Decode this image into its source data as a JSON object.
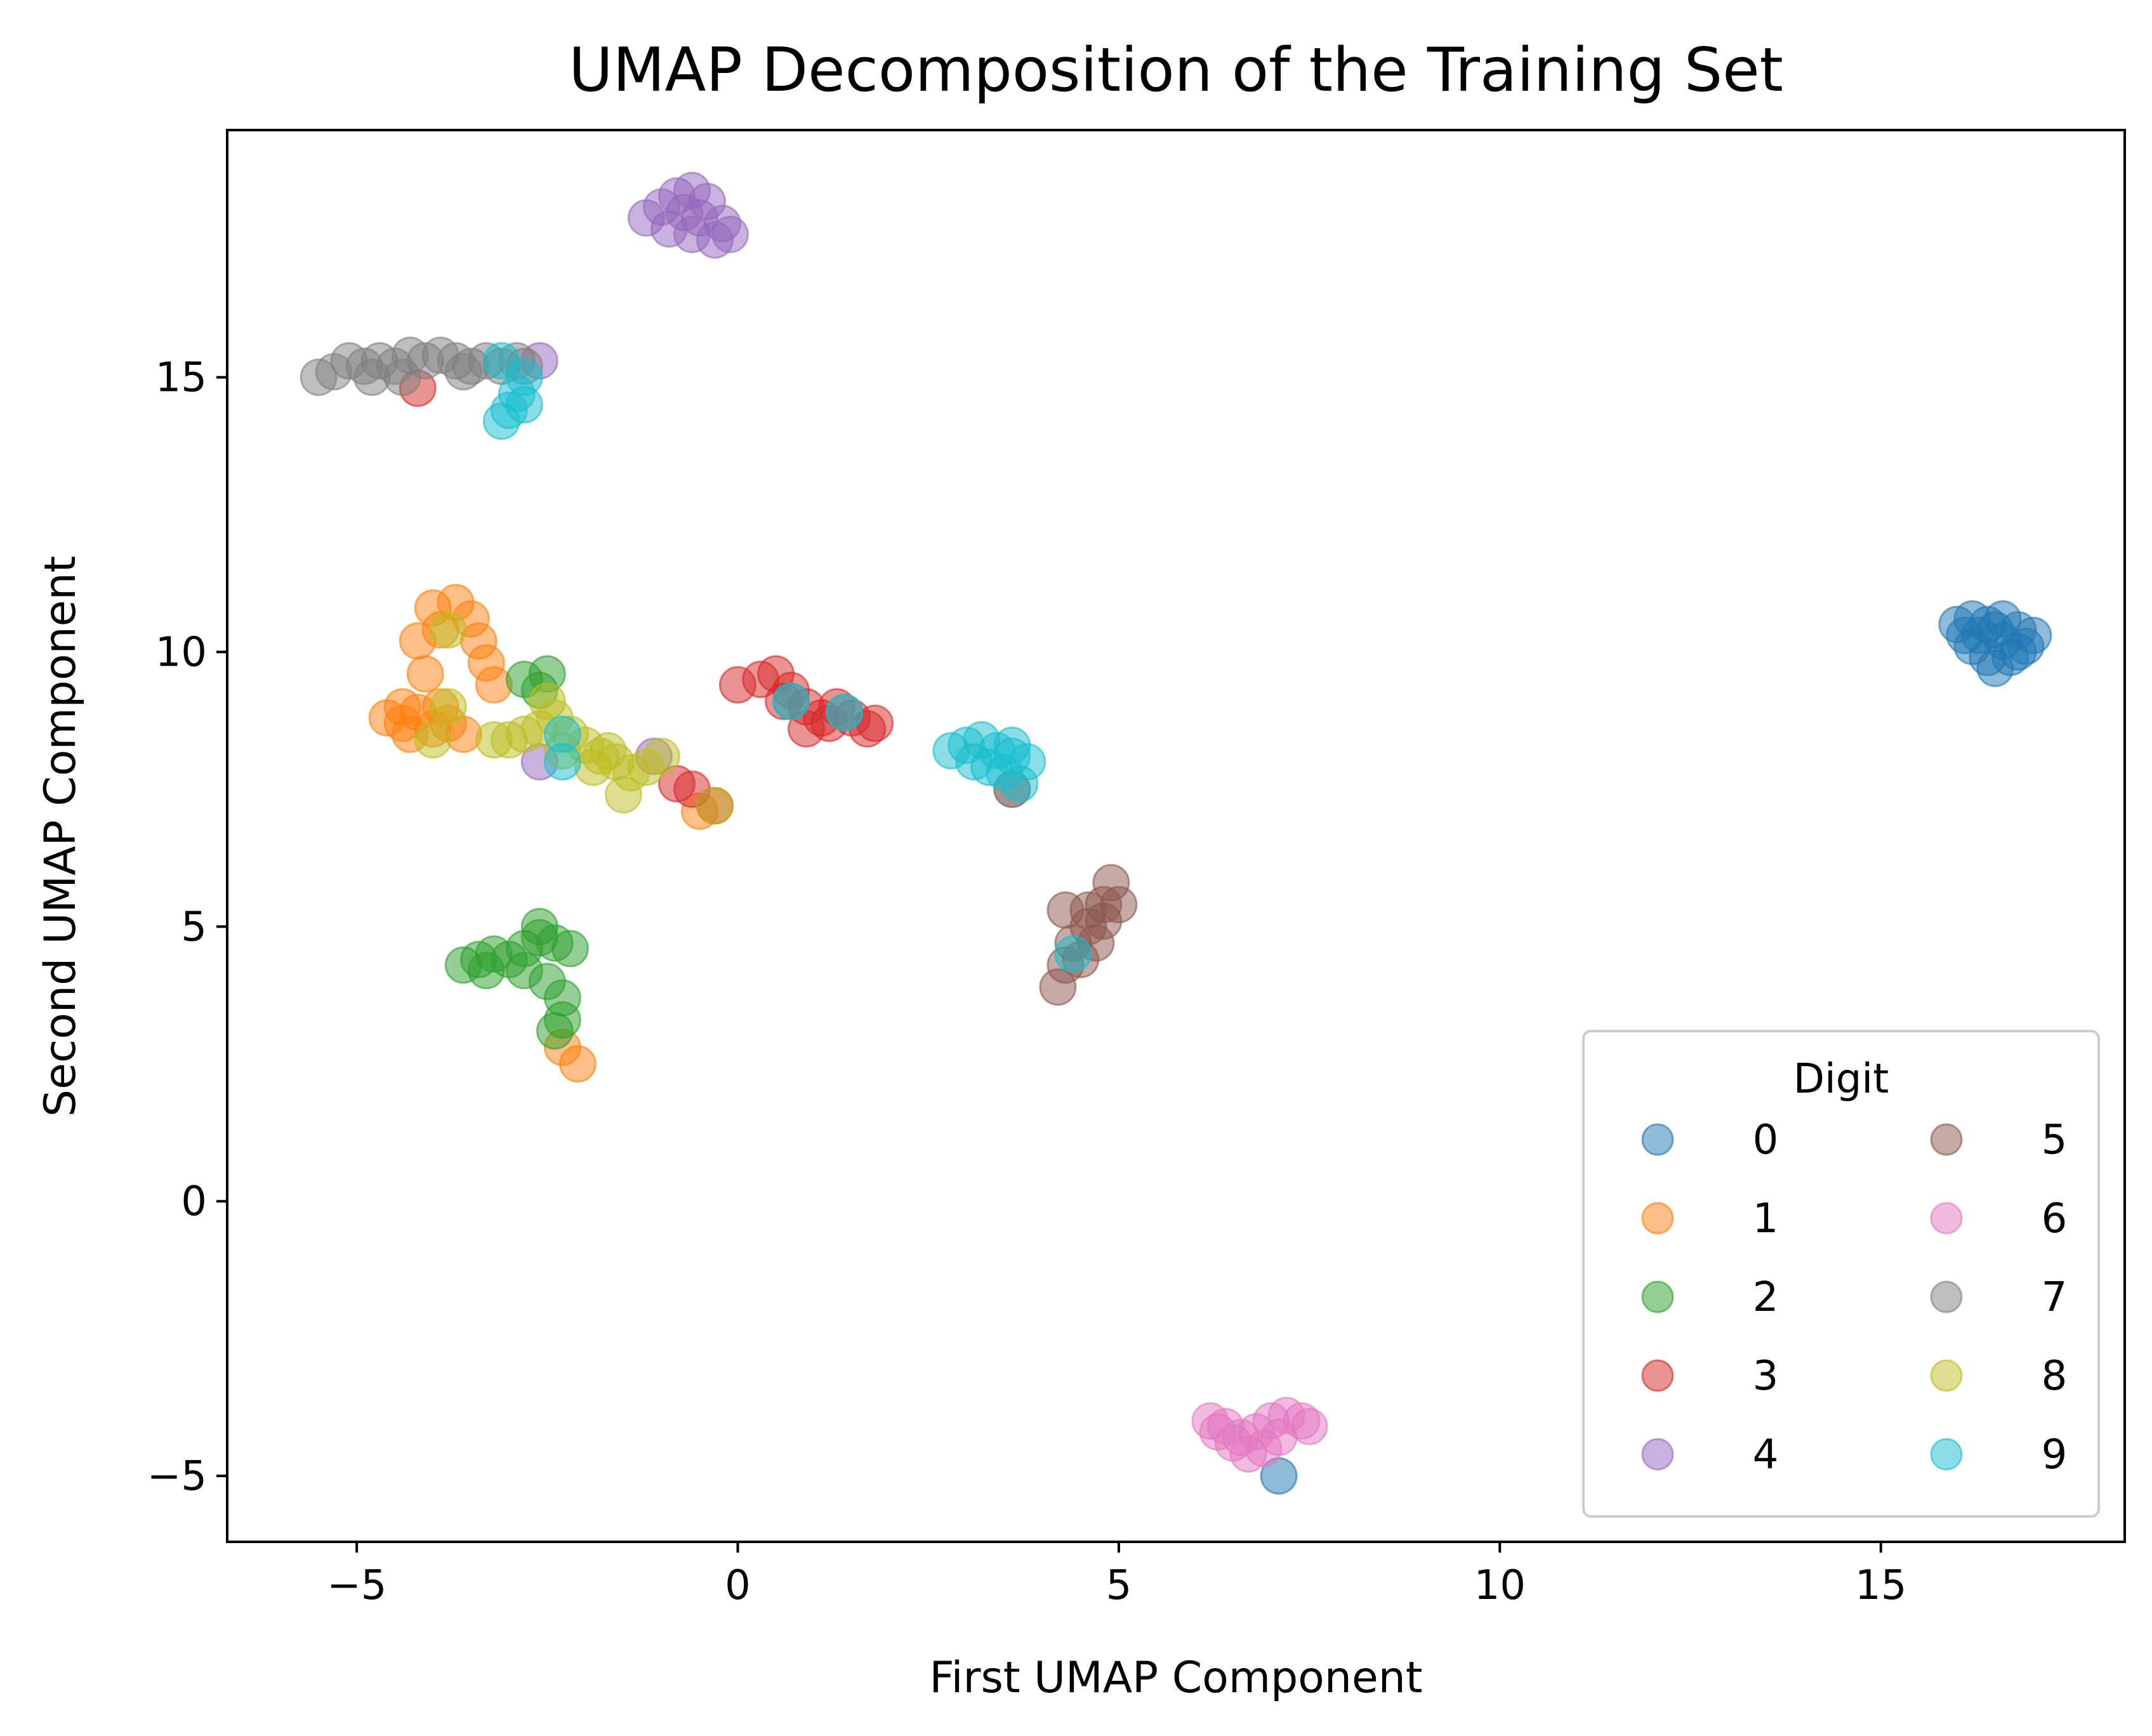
{
  "chart_data": {
    "type": "scatter",
    "title": "UMAP Decomposition of the Training Set",
    "xlabel": "First UMAP Component",
    "ylabel": "Second UMAP Component",
    "xlim": [
      -6.7,
      18.2
    ],
    "ylim": [
      -6.2,
      19.5
    ],
    "xticks": [
      -5,
      0,
      5,
      10,
      15
    ],
    "yticks": [
      -5,
      0,
      5,
      10,
      15
    ],
    "xtick_labels": [
      "−5",
      "0",
      "5",
      "10",
      "15"
    ],
    "ytick_labels": [
      "−5",
      "0",
      "5",
      "10",
      "15"
    ],
    "grid": false,
    "legend": {
      "title": "Digit",
      "placement": "lower-right",
      "columns": 2
    },
    "series": [
      {
        "name": "0",
        "color": "#1f77b4",
        "points": [
          [
            16.0,
            10.5
          ],
          [
            16.2,
            10.6
          ],
          [
            16.4,
            10.5
          ],
          [
            16.6,
            10.6
          ],
          [
            16.8,
            10.4
          ],
          [
            17.0,
            10.3
          ],
          [
            16.2,
            10.1
          ],
          [
            16.4,
            9.9
          ],
          [
            16.5,
            9.7
          ],
          [
            16.7,
            9.9
          ],
          [
            16.9,
            10.1
          ],
          [
            16.3,
            10.3
          ],
          [
            16.6,
            10.2
          ],
          [
            16.1,
            10.3
          ],
          [
            16.8,
            10.0
          ],
          [
            16.5,
            10.4
          ],
          [
            7.1,
            -5.0
          ]
        ]
      },
      {
        "name": "1",
        "color": "#ff7f0e",
        "points": [
          [
            -4.6,
            8.8
          ],
          [
            -4.4,
            8.7
          ],
          [
            -4.2,
            8.9
          ],
          [
            -4.0,
            8.6
          ],
          [
            -3.8,
            8.7
          ],
          [
            -3.6,
            8.5
          ],
          [
            -4.3,
            8.5
          ],
          [
            -3.9,
            9.0
          ],
          [
            -4.1,
            9.6
          ],
          [
            -4.2,
            10.2
          ],
          [
            -4.0,
            10.8
          ],
          [
            -3.7,
            10.9
          ],
          [
            -3.5,
            10.6
          ],
          [
            -3.4,
            10.2
          ],
          [
            -3.3,
            9.8
          ],
          [
            -3.2,
            9.4
          ],
          [
            -3.9,
            10.4
          ],
          [
            -2.3,
            2.8
          ],
          [
            -2.1,
            2.5
          ],
          [
            -0.5,
            7.1
          ],
          [
            -4.4,
            9.0
          ]
        ]
      },
      {
        "name": "2",
        "color": "#2ca02c",
        "points": [
          [
            -3.6,
            4.3
          ],
          [
            -3.4,
            4.4
          ],
          [
            -3.2,
            4.5
          ],
          [
            -3.0,
            4.4
          ],
          [
            -2.8,
            4.6
          ],
          [
            -2.6,
            4.8
          ],
          [
            -2.4,
            4.7
          ],
          [
            -2.8,
            4.2
          ],
          [
            -2.5,
            4.0
          ],
          [
            -2.3,
            3.7
          ],
          [
            -2.3,
            3.3
          ],
          [
            -2.4,
            3.1
          ],
          [
            -2.6,
            5.0
          ],
          [
            -3.3,
            4.2
          ],
          [
            -2.2,
            4.6
          ],
          [
            -2.8,
            9.5
          ],
          [
            -2.5,
            9.6
          ],
          [
            -2.6,
            9.3
          ]
        ]
      },
      {
        "name": "3",
        "color": "#d62728",
        "points": [
          [
            0.0,
            9.4
          ],
          [
            0.3,
            9.5
          ],
          [
            0.5,
            9.6
          ],
          [
            0.7,
            9.3
          ],
          [
            0.9,
            9.0
          ],
          [
            1.1,
            8.8
          ],
          [
            1.3,
            9.0
          ],
          [
            1.5,
            8.8
          ],
          [
            1.7,
            8.6
          ],
          [
            0.9,
            8.6
          ],
          [
            0.6,
            9.1
          ],
          [
            1.2,
            8.7
          ],
          [
            -0.8,
            7.6
          ],
          [
            -0.6,
            7.5
          ],
          [
            -0.3,
            7.2
          ],
          [
            -4.2,
            14.8
          ],
          [
            1.8,
            8.7
          ]
        ]
      },
      {
        "name": "4",
        "color": "#9467bd",
        "points": [
          [
            -1.2,
            17.9
          ],
          [
            -1.0,
            18.1
          ],
          [
            -0.8,
            18.3
          ],
          [
            -0.6,
            18.4
          ],
          [
            -0.4,
            18.2
          ],
          [
            -0.2,
            17.8
          ],
          [
            -0.3,
            17.5
          ],
          [
            -0.6,
            17.6
          ],
          [
            -0.9,
            17.7
          ],
          [
            -0.7,
            18.0
          ],
          [
            -0.5,
            17.9
          ],
          [
            -0.1,
            17.6
          ],
          [
            -2.6,
            15.3
          ],
          [
            -2.6,
            8.0
          ],
          [
            -1.1,
            8.1
          ]
        ]
      },
      {
        "name": "5",
        "color": "#8c564b",
        "points": [
          [
            4.2,
            3.9
          ],
          [
            4.3,
            4.3
          ],
          [
            4.4,
            4.7
          ],
          [
            4.6,
            5.0
          ],
          [
            4.8,
            5.4
          ],
          [
            4.9,
            5.8
          ],
          [
            5.0,
            5.4
          ],
          [
            4.7,
            4.7
          ],
          [
            4.5,
            4.4
          ],
          [
            4.8,
            5.1
          ],
          [
            4.6,
            5.3
          ],
          [
            4.3,
            5.3
          ],
          [
            3.6,
            7.5
          ]
        ]
      },
      {
        "name": "6",
        "color": "#e377c2",
        "points": [
          [
            6.2,
            -4.0
          ],
          [
            6.4,
            -4.1
          ],
          [
            6.6,
            -4.3
          ],
          [
            6.8,
            -4.2
          ],
          [
            7.0,
            -4.0
          ],
          [
            7.2,
            -3.9
          ],
          [
            7.4,
            -4.0
          ],
          [
            6.5,
            -4.4
          ],
          [
            6.9,
            -4.5
          ],
          [
            7.1,
            -4.3
          ],
          [
            6.3,
            -4.2
          ],
          [
            7.5,
            -4.1
          ],
          [
            6.7,
            -4.6
          ]
        ]
      },
      {
        "name": "7",
        "color": "#7f7f7f",
        "points": [
          [
            -5.5,
            15.0
          ],
          [
            -5.3,
            15.1
          ],
          [
            -5.1,
            15.3
          ],
          [
            -4.9,
            15.2
          ],
          [
            -4.7,
            15.3
          ],
          [
            -4.5,
            15.2
          ],
          [
            -4.3,
            15.4
          ],
          [
            -4.1,
            15.3
          ],
          [
            -3.9,
            15.4
          ],
          [
            -3.7,
            15.3
          ],
          [
            -3.5,
            15.2
          ],
          [
            -3.3,
            15.3
          ],
          [
            -3.1,
            15.2
          ],
          [
            -2.9,
            15.3
          ],
          [
            -2.8,
            15.2
          ],
          [
            -4.8,
            15.0
          ],
          [
            -4.4,
            15.0
          ],
          [
            -3.6,
            15.1
          ],
          [
            0.7,
            9.1
          ],
          [
            1.4,
            8.9
          ],
          [
            3.6,
            7.5
          ]
        ]
      },
      {
        "name": "8",
        "color": "#bcbd22",
        "points": [
          [
            -3.2,
            8.4
          ],
          [
            -3.0,
            8.4
          ],
          [
            -2.8,
            8.5
          ],
          [
            -2.6,
            8.6
          ],
          [
            -2.4,
            8.8
          ],
          [
            -2.2,
            8.5
          ],
          [
            -2.0,
            8.3
          ],
          [
            -1.8,
            8.1
          ],
          [
            -1.6,
            8.0
          ],
          [
            -1.4,
            7.8
          ],
          [
            -1.2,
            7.9
          ],
          [
            -1.0,
            8.1
          ],
          [
            -1.5,
            7.4
          ],
          [
            -1.9,
            7.9
          ],
          [
            -2.5,
            9.1
          ],
          [
            -2.3,
            8.2
          ],
          [
            -3.8,
            10.4
          ],
          [
            -3.8,
            9.0
          ],
          [
            -4.0,
            8.4
          ],
          [
            -0.3,
            7.2
          ],
          [
            -1.7,
            8.2
          ]
        ]
      },
      {
        "name": "9",
        "color": "#17becf",
        "points": [
          [
            2.8,
            8.2
          ],
          [
            3.0,
            8.3
          ],
          [
            3.2,
            8.4
          ],
          [
            3.4,
            8.2
          ],
          [
            3.6,
            8.1
          ],
          [
            3.8,
            8.0
          ],
          [
            3.5,
            7.8
          ],
          [
            3.3,
            7.9
          ],
          [
            3.7,
            7.6
          ],
          [
            3.1,
            8.0
          ],
          [
            3.6,
            8.3
          ],
          [
            -3.1,
            14.2
          ],
          [
            -3.0,
            14.4
          ],
          [
            -2.9,
            14.7
          ],
          [
            -2.8,
            15.0
          ],
          [
            -2.8,
            14.5
          ],
          [
            -3.1,
            15.3
          ],
          [
            -2.3,
            8.5
          ],
          [
            -2.3,
            8.0
          ],
          [
            4.4,
            4.5
          ],
          [
            0.7,
            9.1
          ],
          [
            1.4,
            8.9
          ]
        ]
      }
    ]
  }
}
